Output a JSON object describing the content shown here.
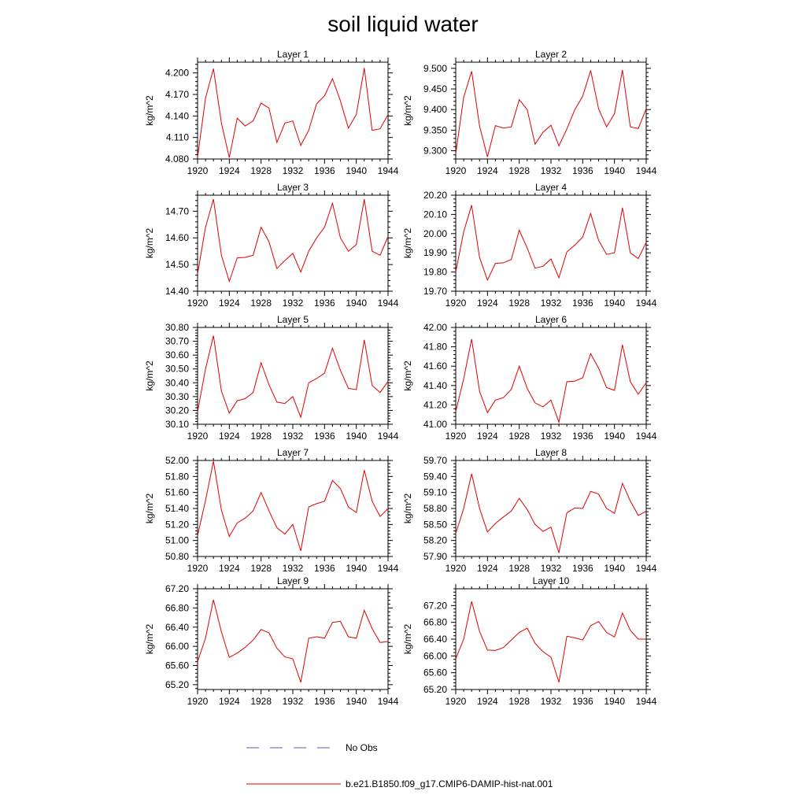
{
  "figure": {
    "title": "soil liquid water"
  },
  "legend": {
    "items": [
      {
        "label": "No Obs",
        "color": "#5a5aa8",
        "dash": "dashed"
      },
      {
        "label": "b.e21.B1850.f09_g17.CMIP6-DAMIP-hist-nat.001",
        "color": "#e00000",
        "dash": "solid"
      }
    ]
  },
  "chart_data": [
    {
      "type": "line",
      "title": "Layer 1",
      "xlabel": "",
      "ylabel": "kg/m^2",
      "xlim": [
        1920,
        1944
      ],
      "ylim": [
        4.08,
        4.215
      ],
      "x_ticks": [
        1920,
        1924,
        1928,
        1932,
        1936,
        1940,
        1944
      ],
      "x_tick_labels": [
        "1920",
        "1924",
        "1928",
        "1932",
        "1936",
        "1940",
        "1944"
      ],
      "y_ticks": [
        4.08,
        4.11,
        4.14,
        4.17,
        4.2
      ],
      "y_tick_labels": [
        "4.080",
        "4.110",
        "4.140",
        "4.170",
        "4.200"
      ],
      "grid": false,
      "series": [
        {
          "name": "b.e21.B1850.f09_g17.CMIP6-DAMIP-hist-nat.001",
          "color": "#e00000",
          "x": [
            1920,
            1921,
            1922,
            1923,
            1924,
            1925,
            1926,
            1927,
            1928,
            1929,
            1930,
            1931,
            1932,
            1933,
            1934,
            1935,
            1936,
            1937,
            1938,
            1939,
            1940,
            1941,
            1942,
            1943,
            1944
          ],
          "values": [
            4.082,
            4.165,
            4.206,
            4.13,
            4.082,
            4.137,
            4.126,
            4.133,
            4.158,
            4.151,
            4.103,
            4.13,
            4.133,
            4.099,
            4.12,
            4.157,
            4.168,
            4.192,
            4.161,
            4.123,
            4.142,
            4.207,
            4.12,
            4.122,
            4.142
          ]
        }
      ]
    },
    {
      "type": "line",
      "title": "Layer 2",
      "xlabel": "",
      "ylabel": "kg/m^2",
      "xlim": [
        1920,
        1944
      ],
      "ylim": [
        9.28,
        9.515
      ],
      "x_ticks": [
        1920,
        1924,
        1928,
        1932,
        1936,
        1940,
        1944
      ],
      "x_tick_labels": [
        "1920",
        "1924",
        "1928",
        "1932",
        "1936",
        "1940",
        "1944"
      ],
      "y_ticks": [
        9.3,
        9.35,
        9.4,
        9.45,
        9.5
      ],
      "y_tick_labels": [
        "9.300",
        "9.350",
        "9.400",
        "9.450",
        "9.500"
      ],
      "grid": false,
      "series": [
        {
          "name": "b.e21.B1850.f09_g17.CMIP6-DAMIP-hist-nat.001",
          "color": "#e00000",
          "x": [
            1920,
            1921,
            1922,
            1923,
            1924,
            1925,
            1926,
            1927,
            1928,
            1929,
            1930,
            1931,
            1932,
            1933,
            1934,
            1935,
            1936,
            1937,
            1938,
            1939,
            1940,
            1941,
            1942,
            1943,
            1944
          ],
          "values": [
            9.293,
            9.43,
            9.493,
            9.36,
            9.285,
            9.361,
            9.355,
            9.358,
            9.424,
            9.4,
            9.316,
            9.345,
            9.362,
            9.312,
            9.353,
            9.4,
            9.432,
            9.495,
            9.402,
            9.358,
            9.39,
            9.496,
            9.358,
            9.354,
            9.402
          ]
        }
      ]
    },
    {
      "type": "line",
      "title": "Layer 3",
      "xlabel": "",
      "ylabel": "kg/m^2",
      "xlim": [
        1920,
        1944
      ],
      "ylim": [
        14.4,
        14.76
      ],
      "x_ticks": [
        1920,
        1924,
        1928,
        1932,
        1936,
        1940,
        1944
      ],
      "x_tick_labels": [
        "1920",
        "1924",
        "1928",
        "1932",
        "1936",
        "1940",
        "1944"
      ],
      "y_ticks": [
        14.4,
        14.5,
        14.6,
        14.7
      ],
      "y_tick_labels": [
        "14.40",
        "14.50",
        "14.60",
        "14.70"
      ],
      "grid": false,
      "series": [
        {
          "name": "b.e21.B1850.f09_g17.CMIP6-DAMIP-hist-nat.001",
          "color": "#e00000",
          "x": [
            1920,
            1921,
            1922,
            1923,
            1924,
            1925,
            1926,
            1927,
            1928,
            1929,
            1930,
            1931,
            1932,
            1933,
            1934,
            1935,
            1936,
            1937,
            1938,
            1939,
            1940,
            1941,
            1942,
            1943,
            1944
          ],
          "values": [
            14.465,
            14.64,
            14.745,
            14.535,
            14.437,
            14.525,
            14.527,
            14.535,
            14.64,
            14.585,
            14.485,
            14.515,
            14.542,
            14.472,
            14.55,
            14.6,
            14.64,
            14.73,
            14.6,
            14.55,
            14.575,
            14.745,
            14.55,
            14.535,
            14.605
          ]
        }
      ]
    },
    {
      "type": "line",
      "title": "Layer 4",
      "xlabel": "",
      "ylabel": "kg/m^2",
      "xlim": [
        1920,
        1944
      ],
      "ylim": [
        19.7,
        20.2
      ],
      "x_ticks": [
        1920,
        1924,
        1928,
        1932,
        1936,
        1940,
        1944
      ],
      "x_tick_labels": [
        "1920",
        "1924",
        "1928",
        "1932",
        "1936",
        "1940",
        "1944"
      ],
      "y_ticks": [
        19.7,
        19.8,
        19.9,
        20.0,
        20.1,
        20.2
      ],
      "y_tick_labels": [
        "19.70",
        "19.80",
        "19.90",
        "20.00",
        "20.10",
        "20.20"
      ],
      "grid": false,
      "series": [
        {
          "name": "b.e21.B1850.f09_g17.CMIP6-DAMIP-hist-nat.001",
          "color": "#e00000",
          "x": [
            1920,
            1921,
            1922,
            1923,
            1924,
            1925,
            1926,
            1927,
            1928,
            1929,
            1930,
            1931,
            1932,
            1933,
            1934,
            1935,
            1936,
            1937,
            1938,
            1939,
            1940,
            1941,
            1942,
            1943,
            1944
          ],
          "values": [
            19.8,
            20.01,
            20.148,
            19.875,
            19.758,
            19.845,
            19.848,
            19.865,
            20.018,
            19.925,
            19.82,
            19.83,
            19.868,
            19.77,
            19.905,
            19.94,
            19.982,
            20.105,
            19.965,
            19.892,
            19.9,
            20.135,
            19.9,
            19.87,
            19.955
          ]
        }
      ]
    },
    {
      "type": "line",
      "title": "Layer 5",
      "xlabel": "",
      "ylabel": "kg/m^2",
      "xlim": [
        1920,
        1944
      ],
      "ylim": [
        30.1,
        30.8
      ],
      "x_ticks": [
        1920,
        1924,
        1928,
        1932,
        1936,
        1940,
        1944
      ],
      "x_tick_labels": [
        "1920",
        "1924",
        "1928",
        "1932",
        "1936",
        "1940",
        "1944"
      ],
      "y_ticks": [
        30.1,
        30.2,
        30.3,
        30.4,
        30.5,
        30.6,
        30.7,
        30.8
      ],
      "y_tick_labels": [
        "30.10",
        "30.20",
        "30.30",
        "30.40",
        "30.50",
        "30.60",
        "30.70",
        "30.80"
      ],
      "grid": false,
      "series": [
        {
          "name": "b.e21.B1850.f09_g17.CMIP6-DAMIP-hist-nat.001",
          "color": "#e00000",
          "x": [
            1920,
            1921,
            1922,
            1923,
            1924,
            1925,
            1926,
            1927,
            1928,
            1929,
            1930,
            1931,
            1932,
            1933,
            1934,
            1935,
            1936,
            1937,
            1938,
            1939,
            1940,
            1941,
            1942,
            1943,
            1944
          ],
          "values": [
            30.19,
            30.5,
            30.74,
            30.34,
            30.18,
            30.27,
            30.285,
            30.33,
            30.545,
            30.385,
            30.26,
            30.25,
            30.3,
            30.15,
            30.4,
            30.43,
            30.47,
            30.65,
            30.49,
            30.36,
            30.35,
            30.71,
            30.38,
            30.33,
            30.41
          ]
        }
      ]
    },
    {
      "type": "line",
      "title": "Layer 6",
      "xlabel": "",
      "ylabel": "kg/m^2",
      "xlim": [
        1920,
        1944
      ],
      "ylim": [
        41.0,
        42.0
      ],
      "x_ticks": [
        1920,
        1924,
        1928,
        1932,
        1936,
        1940,
        1944
      ],
      "x_tick_labels": [
        "1920",
        "1924",
        "1928",
        "1932",
        "1936",
        "1940",
        "1944"
      ],
      "y_ticks": [
        41.0,
        41.2,
        41.4,
        41.6,
        41.8,
        42.0
      ],
      "y_tick_labels": [
        "41.00",
        "41.20",
        "41.40",
        "41.60",
        "41.80",
        "42.00"
      ],
      "grid": false,
      "series": [
        {
          "name": "b.e21.B1850.f09_g17.CMIP6-DAMIP-hist-nat.001",
          "color": "#e00000",
          "x": [
            1920,
            1921,
            1922,
            1923,
            1924,
            1925,
            1926,
            1927,
            1928,
            1929,
            1930,
            1931,
            1932,
            1933,
            1934,
            1935,
            1936,
            1937,
            1938,
            1939,
            1940,
            1941,
            1942,
            1943,
            1944
          ],
          "values": [
            41.13,
            41.47,
            41.88,
            41.34,
            41.12,
            41.25,
            41.275,
            41.36,
            41.6,
            41.37,
            41.22,
            41.18,
            41.25,
            41.02,
            41.44,
            41.445,
            41.48,
            41.73,
            41.58,
            41.38,
            41.35,
            41.82,
            41.44,
            41.31,
            41.43
          ]
        }
      ]
    },
    {
      "type": "line",
      "title": "Layer 7",
      "xlabel": "",
      "ylabel": "kg/m^2",
      "xlim": [
        1920,
        1944
      ],
      "ylim": [
        50.8,
        52.0
      ],
      "x_ticks": [
        1920,
        1924,
        1928,
        1932,
        1936,
        1940,
        1944
      ],
      "x_tick_labels": [
        "1920",
        "1924",
        "1928",
        "1932",
        "1936",
        "1940",
        "1944"
      ],
      "y_ticks": [
        50.8,
        51.0,
        51.2,
        51.4,
        51.6,
        51.8,
        52.0
      ],
      "y_tick_labels": [
        "50.80",
        "51.00",
        "51.20",
        "51.40",
        "51.60",
        "51.80",
        "52.00"
      ],
      "grid": false,
      "series": [
        {
          "name": "b.e21.B1850.f09_g17.CMIP6-DAMIP-hist-nat.001",
          "color": "#e00000",
          "x": [
            1920,
            1921,
            1922,
            1923,
            1924,
            1925,
            1926,
            1927,
            1928,
            1929,
            1930,
            1931,
            1932,
            1933,
            1934,
            1935,
            1936,
            1937,
            1938,
            1939,
            1940,
            1941,
            1942,
            1943,
            1944
          ],
          "values": [
            51.06,
            51.5,
            51.99,
            51.38,
            51.05,
            51.22,
            51.28,
            51.37,
            51.6,
            51.37,
            51.16,
            51.08,
            51.2,
            50.87,
            51.42,
            51.46,
            51.49,
            51.75,
            51.65,
            51.42,
            51.35,
            51.88,
            51.49,
            51.3,
            51.4
          ]
        }
      ]
    },
    {
      "type": "line",
      "title": "Layer 8",
      "xlabel": "",
      "ylabel": "kg/m^2",
      "xlim": [
        1920,
        1944
      ],
      "ylim": [
        57.9,
        59.7
      ],
      "x_ticks": [
        1920,
        1924,
        1928,
        1932,
        1936,
        1940,
        1944
      ],
      "x_tick_labels": [
        "1920",
        "1924",
        "1928",
        "1932",
        "1936",
        "1940",
        "1944"
      ],
      "y_ticks": [
        57.9,
        58.2,
        58.5,
        58.8,
        59.1,
        59.4,
        59.7
      ],
      "y_tick_labels": [
        "57.90",
        "58.20",
        "58.50",
        "58.80",
        "59.10",
        "59.40",
        "59.70"
      ],
      "grid": false,
      "series": [
        {
          "name": "b.e21.B1850.f09_g17.CMIP6-DAMIP-hist-nat.001",
          "color": "#e00000",
          "x": [
            1920,
            1921,
            1922,
            1923,
            1924,
            1925,
            1926,
            1927,
            1928,
            1929,
            1930,
            1931,
            1932,
            1933,
            1934,
            1935,
            1936,
            1937,
            1938,
            1939,
            1940,
            1941,
            1942,
            1943,
            1944
          ],
          "values": [
            58.33,
            58.8,
            59.45,
            58.8,
            58.36,
            58.52,
            58.64,
            58.75,
            58.99,
            58.78,
            58.5,
            58.37,
            58.45,
            57.97,
            58.72,
            58.81,
            58.8,
            59.12,
            59.07,
            58.8,
            58.71,
            59.27,
            58.94,
            58.67,
            58.75
          ]
        }
      ]
    },
    {
      "type": "line",
      "title": "Layer 9",
      "xlabel": "",
      "ylabel": "kg/m^2",
      "xlim": [
        1920,
        1944
      ],
      "ylim": [
        65.1,
        67.2
      ],
      "x_ticks": [
        1920,
        1924,
        1928,
        1932,
        1936,
        1940,
        1944
      ],
      "x_tick_labels": [
        "1920",
        "1924",
        "1928",
        "1932",
        "1936",
        "1940",
        "1944"
      ],
      "y_ticks": [
        65.2,
        65.6,
        66.0,
        66.4,
        66.8,
        67.2
      ],
      "y_tick_labels": [
        "65.20",
        "65.60",
        "66.00",
        "66.40",
        "66.80",
        "67.20"
      ],
      "grid": false,
      "series": [
        {
          "name": "b.e21.B1850.f09_g17.CMIP6-DAMIP-hist-nat.001",
          "color": "#e00000",
          "x": [
            1920,
            1921,
            1922,
            1923,
            1924,
            1925,
            1926,
            1927,
            1928,
            1929,
            1930,
            1931,
            1932,
            1933,
            1934,
            1935,
            1936,
            1937,
            1938,
            1939,
            1940,
            1941,
            1942,
            1943,
            1944
          ],
          "values": [
            65.68,
            66.17,
            66.97,
            66.3,
            65.77,
            65.86,
            65.98,
            66.13,
            66.35,
            66.28,
            65.96,
            65.78,
            65.74,
            65.25,
            66.17,
            66.2,
            66.17,
            66.5,
            66.52,
            66.2,
            66.17,
            66.75,
            66.37,
            66.08,
            66.1
          ]
        }
      ]
    },
    {
      "type": "line",
      "title": "Layer 10",
      "xlabel": "",
      "ylabel": "kg/m^2",
      "xlim": [
        1920,
        1944
      ],
      "ylim": [
        65.2,
        67.6
      ],
      "x_ticks": [
        1920,
        1924,
        1928,
        1932,
        1936,
        1940,
        1944
      ],
      "x_tick_labels": [
        "1920",
        "1924",
        "1928",
        "1932",
        "1936",
        "1940",
        "1944"
      ],
      "y_ticks": [
        65.2,
        65.6,
        66.0,
        66.4,
        66.8,
        67.2
      ],
      "y_tick_labels": [
        "65.20",
        "65.60",
        "66.00",
        "66.40",
        "66.80",
        "67.20"
      ],
      "grid": false,
      "series": [
        {
          "name": "b.e21.B1850.f09_g17.CMIP6-DAMIP-hist-nat.001",
          "color": "#e00000",
          "x": [
            1920,
            1921,
            1922,
            1923,
            1924,
            1925,
            1926,
            1927,
            1928,
            1929,
            1930,
            1931,
            1932,
            1933,
            1934,
            1935,
            1936,
            1937,
            1938,
            1939,
            1940,
            1941,
            1942,
            1943,
            1944
          ],
          "values": [
            65.93,
            66.4,
            67.3,
            66.58,
            66.14,
            66.13,
            66.2,
            66.38,
            66.56,
            66.66,
            66.3,
            66.1,
            65.97,
            65.37,
            66.47,
            66.43,
            66.38,
            66.72,
            66.82,
            66.56,
            66.45,
            67.02,
            66.61,
            66.4,
            66.4
          ]
        }
      ]
    }
  ]
}
